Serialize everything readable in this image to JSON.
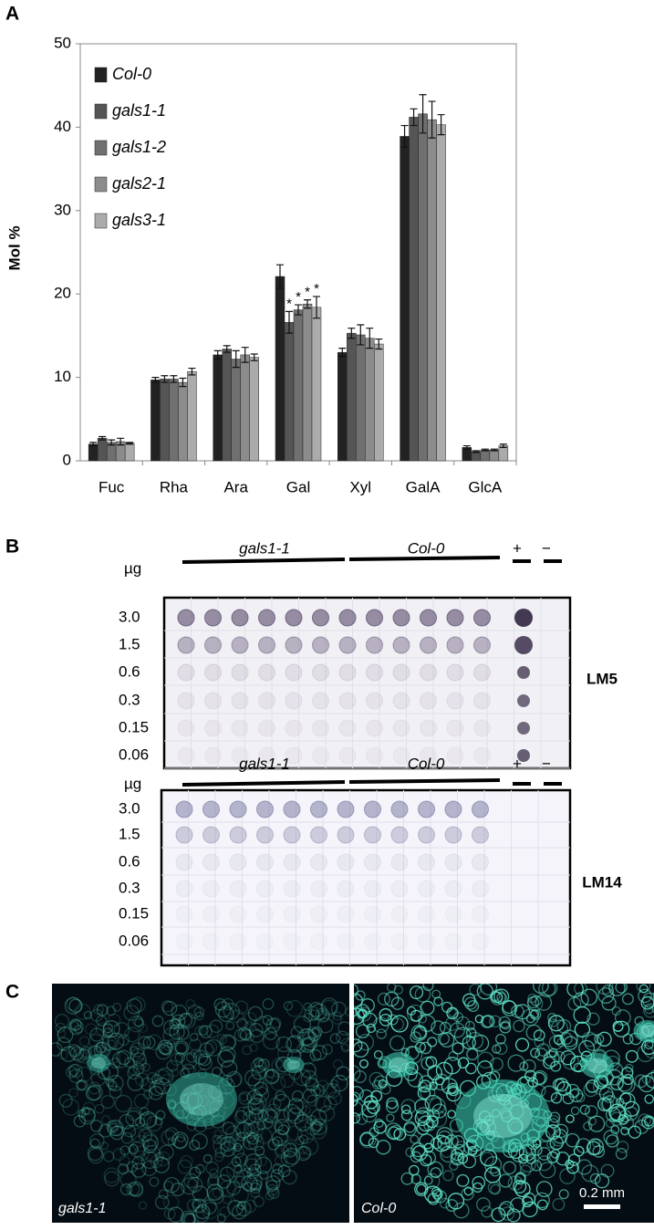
{
  "panel_labels": [
    "A",
    "B",
    "C"
  ],
  "chart_data": {
    "type": "bar",
    "y_label": "Mol %",
    "categories": [
      "Fuc",
      "Rha",
      "Ara",
      "Gal",
      "Xyl",
      "GalA",
      "GlcA"
    ],
    "ylim": [
      0,
      50
    ],
    "yticks": [
      0,
      10,
      20,
      30,
      40,
      50
    ],
    "legend": "top-left",
    "series": [
      {
        "name": "Col-0",
        "color": "#222222",
        "values": [
          2.0,
          9.7,
          12.7,
          22.1,
          13.0,
          38.9,
          1.6
        ],
        "errors": [
          0.2,
          0.3,
          0.5,
          1.4,
          0.5,
          1.3,
          0.2
        ],
        "significance": [
          null,
          null,
          null,
          null,
          null,
          null,
          null
        ]
      },
      {
        "name": "gals1-1",
        "color": "#555555",
        "values": [
          2.7,
          9.8,
          13.4,
          16.6,
          15.3,
          41.2,
          1.1
        ],
        "errors": [
          0.2,
          0.4,
          0.4,
          1.3,
          0.6,
          1.0,
          0.1
        ],
        "significance": [
          null,
          null,
          null,
          "*",
          null,
          null,
          null
        ]
      },
      {
        "name": "gals1-2",
        "color": "#707070",
        "values": [
          2.2,
          9.8,
          12.2,
          18.1,
          15.1,
          41.6,
          1.3
        ],
        "errors": [
          0.3,
          0.4,
          1.0,
          0.6,
          1.2,
          2.3,
          0.1
        ],
        "significance": [
          null,
          null,
          null,
          "*",
          null,
          null,
          null
        ]
      },
      {
        "name": "gals2-1",
        "color": "#8c8c8c",
        "values": [
          2.3,
          9.4,
          12.7,
          18.8,
          14.7,
          40.9,
          1.3
        ],
        "errors": [
          0.4,
          0.5,
          0.9,
          0.5,
          1.2,
          2.2,
          0.1
        ],
        "significance": [
          null,
          null,
          null,
          "*",
          null,
          null,
          null
        ]
      },
      {
        "name": "gals3-1",
        "color": "#ababab",
        "values": [
          2.1,
          10.7,
          12.4,
          18.4,
          14.0,
          40.3,
          1.8
        ],
        "errors": [
          0.1,
          0.4,
          0.4,
          1.3,
          0.6,
          1.2,
          0.2
        ],
        "significance": [
          null,
          null,
          null,
          "*",
          null,
          null,
          null
        ]
      }
    ]
  },
  "blots": [
    {
      "antibody": "LM5",
      "unit": "µg",
      "groups": [
        "gals1-1",
        "Col-0",
        "+",
        "−"
      ],
      "amounts": [
        "3.0",
        "1.5",
        "0.6",
        "0.3",
        "0.15",
        "0.06"
      ]
    },
    {
      "antibody": "LM14",
      "unit": "µg",
      "groups": [
        "gals1-1",
        "Col-0",
        "+",
        "−"
      ],
      "amounts": [
        "3.0",
        "1.5",
        "0.6",
        "0.3",
        "0.15",
        "0.06"
      ]
    }
  ],
  "micrographs": {
    "labels": [
      "gals1-1",
      "Col-0"
    ],
    "scale_bar": "0.2 mm"
  }
}
